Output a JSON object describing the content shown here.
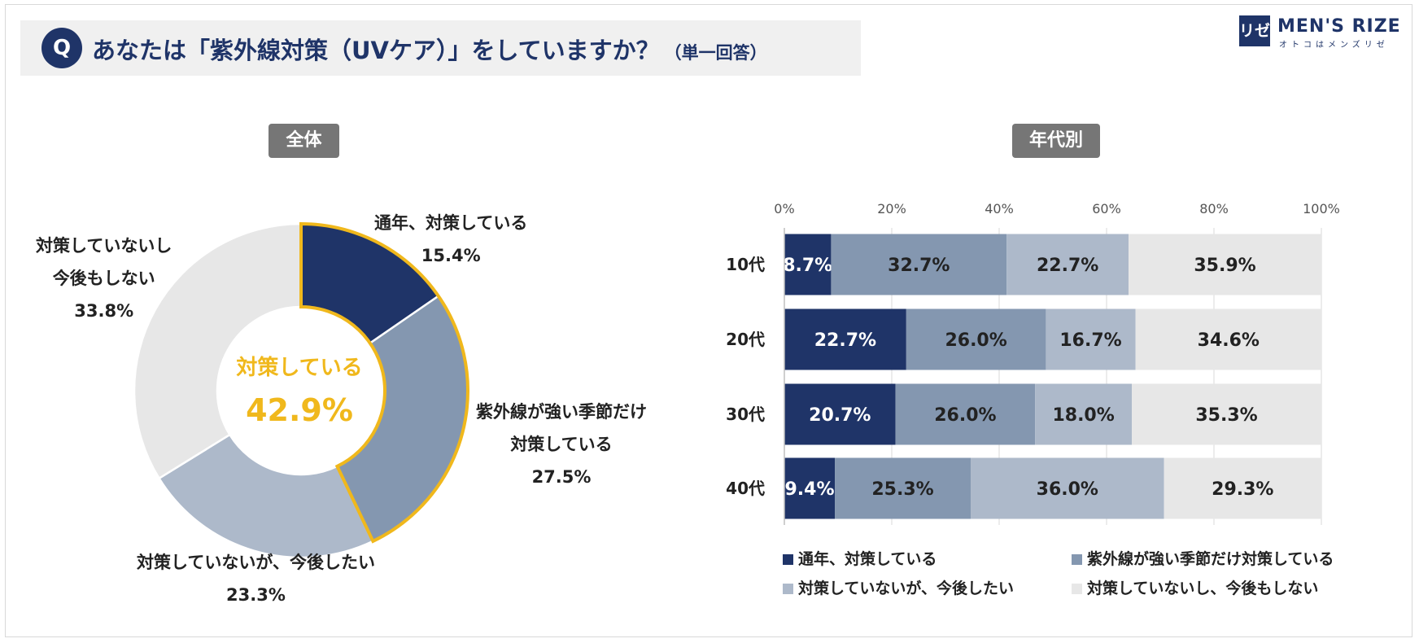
{
  "header": {
    "q_badge": "Q",
    "title": "あなたは「紫外線対策（UVケア）」をしていますか？",
    "note": "（単一回答）"
  },
  "logo": {
    "mark": "リゼ",
    "name": "MEN'S RIZE",
    "tagline": "オトコはメンズリゼ"
  },
  "sections": {
    "overall": "全体",
    "by_age": "年代別"
  },
  "donut_center": {
    "label": "対策している",
    "value": "42.9%"
  },
  "donut_labels": [
    {
      "line1": "通年、対策している",
      "line2": "",
      "pct": "15.4%"
    },
    {
      "line1": "紫外線が強い季節だけ",
      "line2": "対策している",
      "pct": "27.5%"
    },
    {
      "line1": "対策していないが、今後したい",
      "line2": "",
      "pct": "23.3%"
    },
    {
      "line1": "対策していないし",
      "line2": "今後もしない",
      "pct": "33.8%"
    }
  ],
  "legend": [
    "通年、対策している",
    "紫外線が強い季節だけ対策している",
    "対策していないが、今後したい",
    "対策していないし、今後もしない"
  ],
  "colors": {
    "navy": "#1f3468",
    "steel": "#8497b0",
    "light_steel": "#adb9ca",
    "gray": "#e7e7e7",
    "highlight": "#f0b81c"
  },
  "chart_data": [
    {
      "type": "pie",
      "title": "全体",
      "categories": [
        "通年、対策している",
        "紫外線が強い季節だけ対策している",
        "対策していないが、今後したい",
        "対策していないし、今後もしない"
      ],
      "values": [
        15.4,
        27.5,
        23.3,
        33.8
      ],
      "unit": "%",
      "highlight_group": [
        "通年、対策している",
        "紫外線が強い季節だけ対策している"
      ],
      "highlight_total": 42.9,
      "style": "donut"
    },
    {
      "type": "bar",
      "orientation": "horizontal",
      "stacked": true,
      "title": "年代別",
      "categories": [
        "10代",
        "20代",
        "30代",
        "40代"
      ],
      "series": [
        {
          "name": "通年、対策している",
          "values": [
            8.7,
            22.7,
            20.7,
            9.4
          ]
        },
        {
          "name": "紫外線が強い季節だけ対策している",
          "values": [
            32.7,
            26.0,
            26.0,
            25.3
          ]
        },
        {
          "name": "対策していないが、今後したい",
          "values": [
            22.7,
            16.7,
            18.0,
            36.0
          ]
        },
        {
          "name": "対策していないし、今後もしない",
          "values": [
            35.9,
            34.6,
            35.3,
            29.3
          ]
        }
      ],
      "xlim": [
        0,
        100
      ],
      "x_ticks": [
        "0%",
        "20%",
        "40%",
        "60%",
        "80%",
        "100%"
      ],
      "grid": true,
      "legend_position": "bottom"
    }
  ]
}
